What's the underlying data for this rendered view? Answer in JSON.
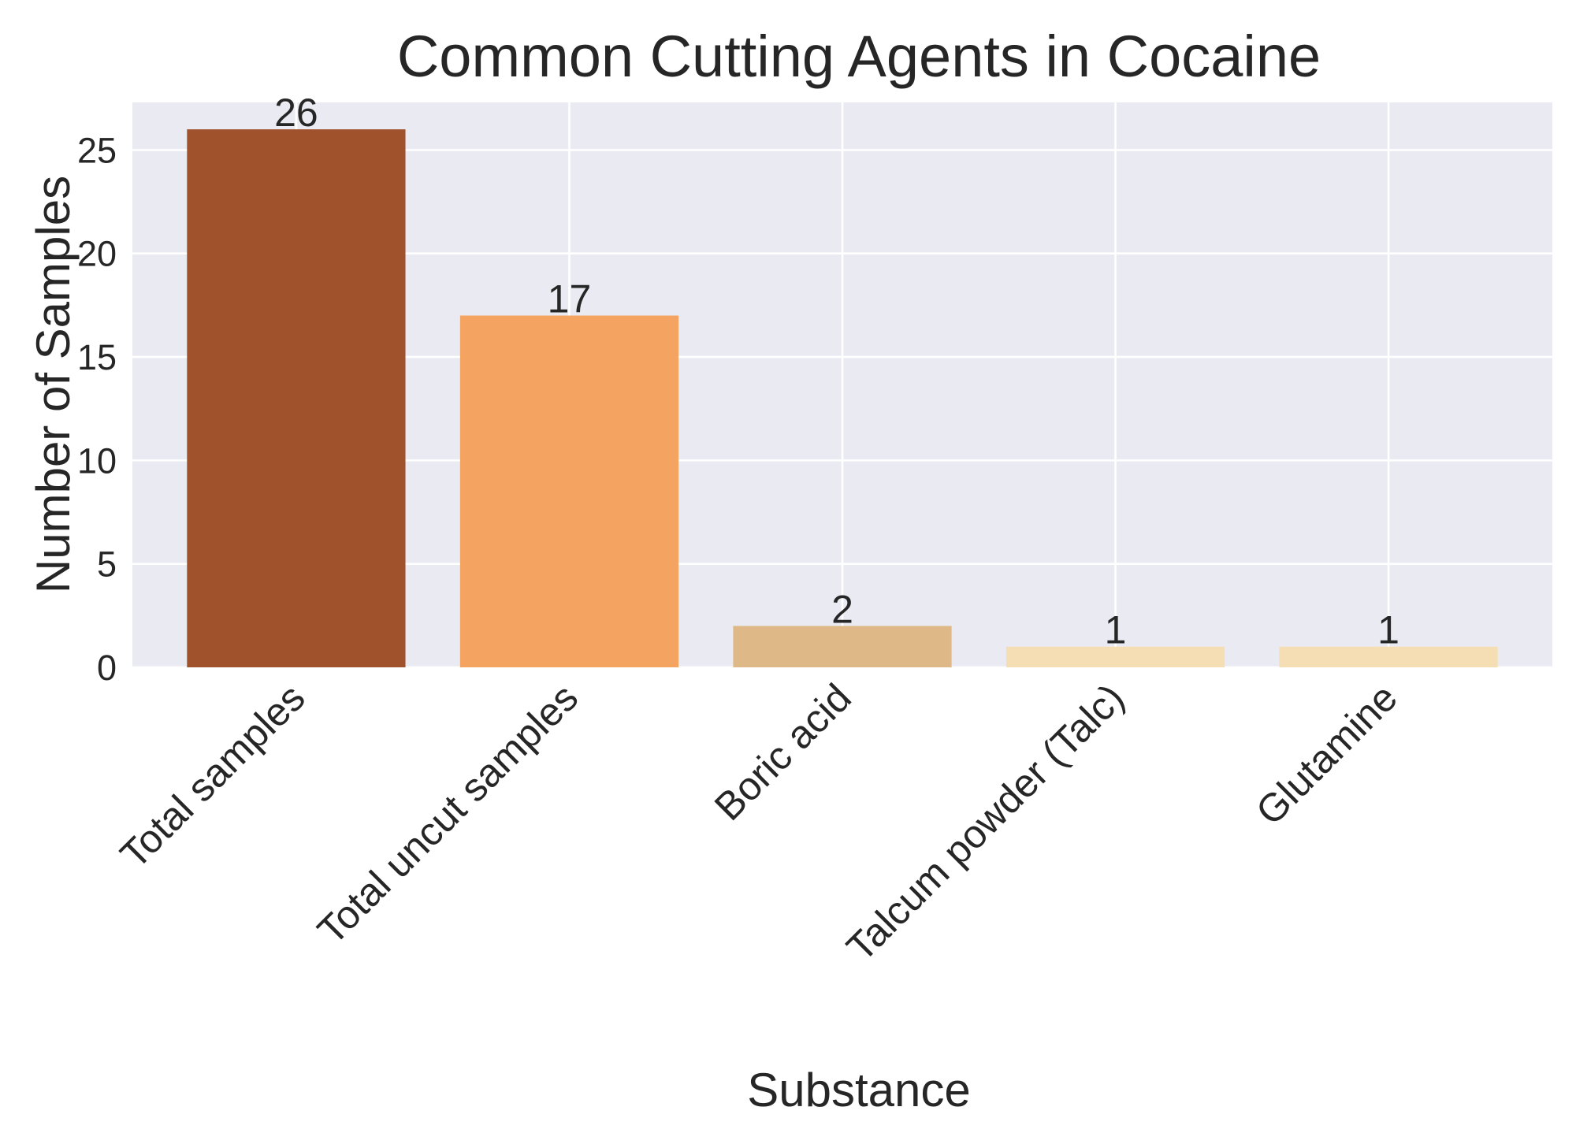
{
  "chart_data": {
    "type": "bar",
    "title": "Common Cutting Agents in Cocaine",
    "xlabel": "Substance",
    "ylabel": "Number of Samples",
    "categories": [
      "Total samples",
      "Total uncut samples",
      "Boric acid",
      "Talcum powder (Talc)",
      "Glutamine"
    ],
    "values": [
      26,
      17,
      2,
      1,
      1
    ],
    "value_labels": [
      "26",
      "17",
      "2",
      "1",
      "1"
    ],
    "bar_colors": [
      "#a0522d",
      "#f4a460",
      "#deb887",
      "#f5deb3",
      "#f5deb3"
    ],
    "yticks": [
      0,
      5,
      10,
      15,
      20,
      25
    ],
    "ytick_labels": [
      "0",
      "5",
      "10",
      "15",
      "20",
      "25"
    ],
    "ylim": [
      0,
      27.3
    ],
    "grid": true,
    "plot_background": "#eaeaf2",
    "grid_color": "#ffffff"
  }
}
